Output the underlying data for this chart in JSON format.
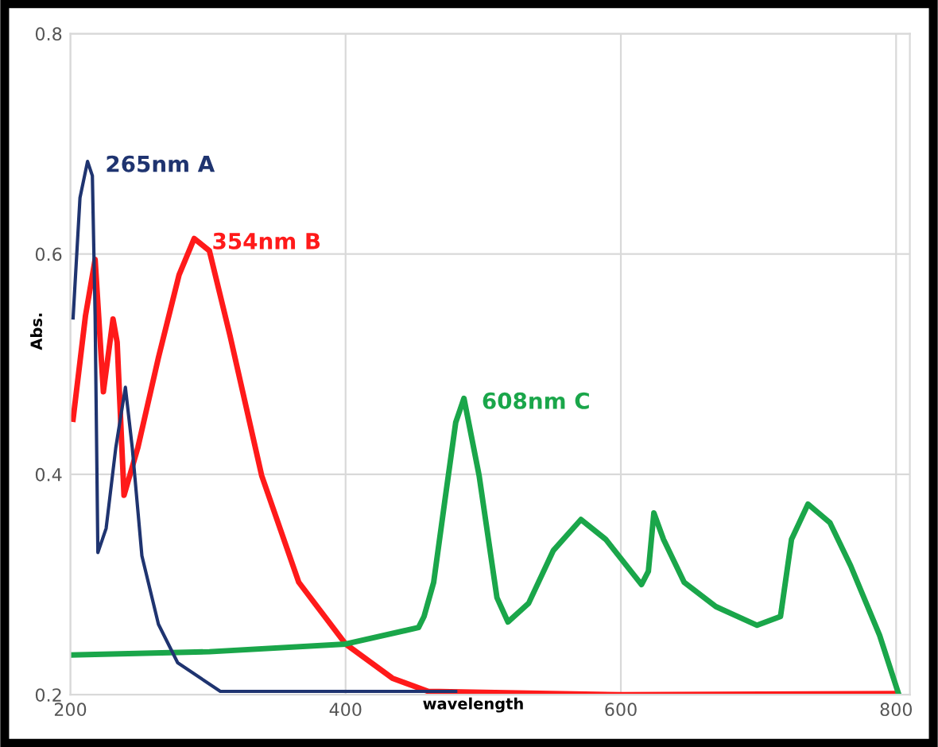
{
  "chart_data": {
    "type": "line",
    "xlabel": "wavelength",
    "ylabel": "Abs.",
    "xlim": [
      200,
      810
    ],
    "ylim": [
      0.2,
      0.8
    ],
    "xticks": [
      200,
      400,
      600,
      800
    ],
    "yticks": [
      0.2,
      0.4,
      0.6,
      0.8
    ],
    "grid": true,
    "legend": false,
    "marker": "none",
    "line_style": "solid",
    "series": [
      {
        "name": "265nm A",
        "color": "#1f3470",
        "x": [
          202,
          207,
          212.5,
          216,
          218,
          220,
          226,
          233,
          240,
          245,
          252,
          264,
          278,
          309,
          480
        ],
        "values": [
          0.542,
          0.651,
          0.684,
          0.671,
          0.544,
          0.329,
          0.351,
          0.424,
          0.479,
          0.424,
          0.326,
          0.264,
          0.229,
          0.203,
          0.203
        ]
      },
      {
        "name": "354nm B",
        "color": "#ff1a1a",
        "x": [
          202,
          211,
          218,
          224,
          231,
          234,
          239,
          249,
          264,
          279,
          290,
          301,
          316,
          339,
          366,
          400,
          434,
          460,
          600,
          800
        ],
        "values": [
          0.45,
          0.544,
          0.595,
          0.475,
          0.541,
          0.52,
          0.381,
          0.424,
          0.506,
          0.581,
          0.614,
          0.603,
          0.526,
          0.399,
          0.302,
          0.246,
          0.215,
          0.203,
          0.2,
          0.201
        ]
      },
      {
        "name": "608nm C",
        "color": "#1aa64a",
        "x": [
          200,
          301,
          400,
          453,
          457,
          464,
          472,
          480,
          486,
          497,
          510,
          518,
          533,
          551,
          571,
          589,
          615,
          620,
          624,
          631,
          646,
          669,
          699,
          716,
          724,
          736,
          752,
          767,
          788,
          802
        ],
        "values": [
          0.236,
          0.239,
          0.246,
          0.261,
          0.271,
          0.302,
          0.375,
          0.447,
          0.469,
          0.399,
          0.288,
          0.266,
          0.283,
          0.331,
          0.359,
          0.341,
          0.3,
          0.312,
          0.365,
          0.341,
          0.302,
          0.28,
          0.263,
          0.271,
          0.341,
          0.373,
          0.356,
          0.317,
          0.254,
          0.2
        ]
      }
    ]
  }
}
